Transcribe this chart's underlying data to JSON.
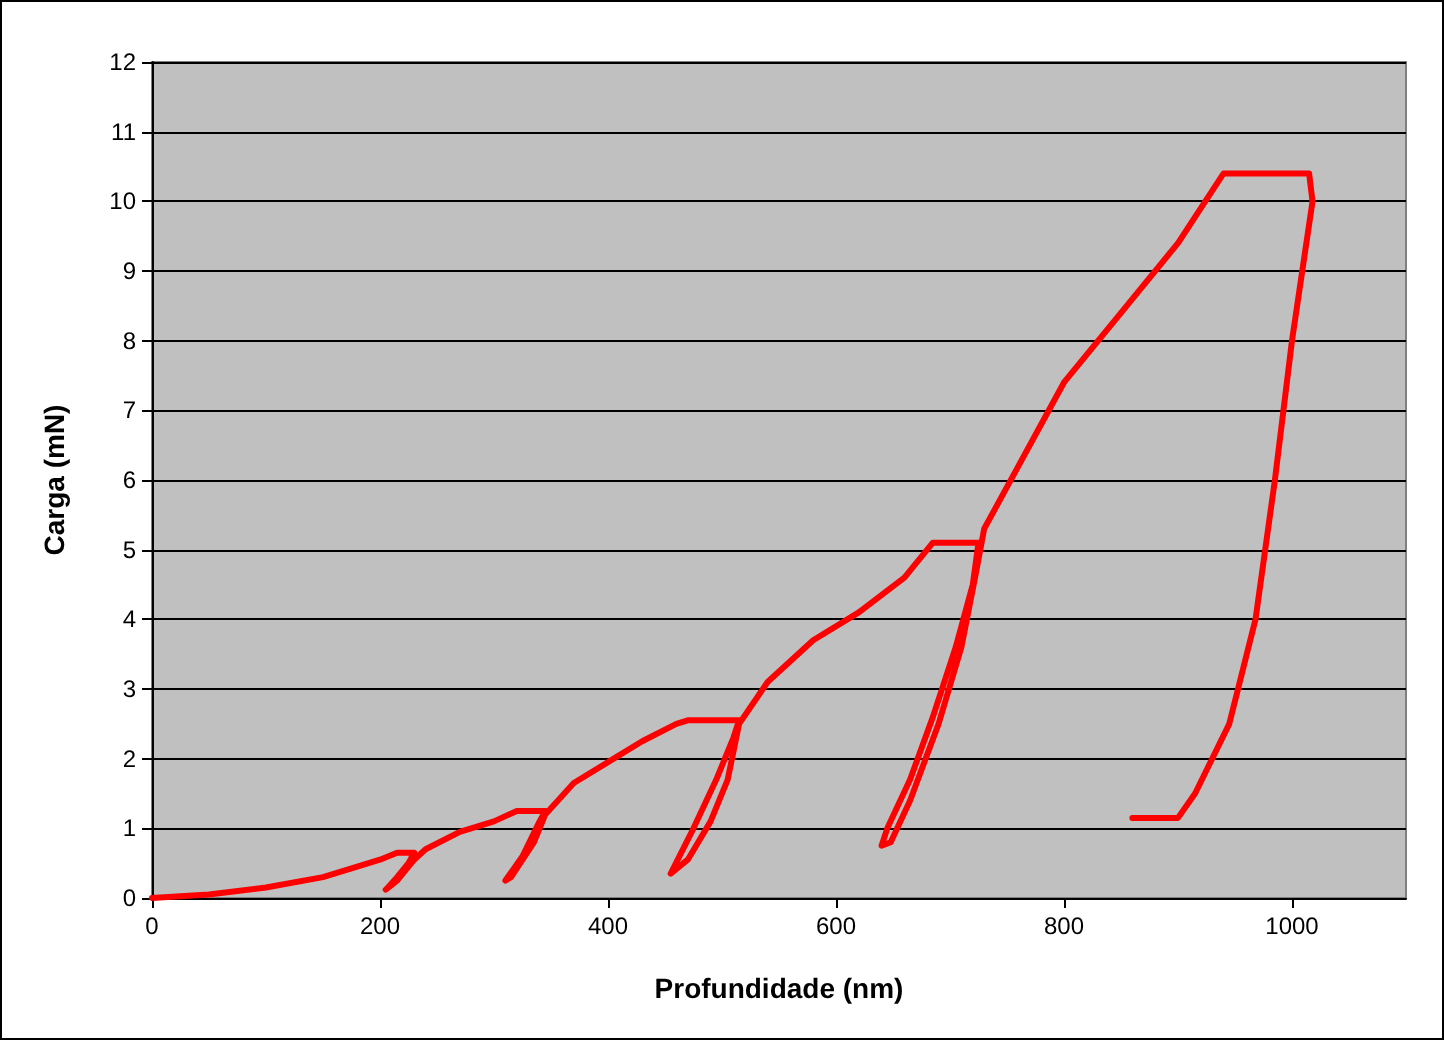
{
  "chart_data": {
    "type": "line",
    "xlabel": "Profundidade (nm)",
    "ylabel": "Carga (mN)",
    "series": [
      {
        "color": "#ff0000",
        "x": [
          0,
          50,
          100,
          150,
          180,
          200,
          215,
          230,
          225,
          215,
          207,
          205,
          215,
          230,
          240,
          270,
          300,
          320,
          345,
          340,
          325,
          310,
          315,
          335,
          345,
          370,
          400,
          430,
          460,
          470,
          515,
          510,
          495,
          475,
          455,
          470,
          490,
          505,
          515,
          540,
          580,
          620,
          660,
          685,
          725,
          720,
          705,
          685,
          665,
          645,
          640,
          648,
          665,
          690,
          710,
          722,
          730,
          760,
          800,
          850,
          900,
          940,
          1015,
          1018,
          1000,
          985,
          968,
          945,
          915,
          900,
          860
        ],
        "values": [
          0,
          0.05,
          0.15,
          0.3,
          0.45,
          0.55,
          0.65,
          0.65,
          0.5,
          0.3,
          0.15,
          0.12,
          0.25,
          0.55,
          0.7,
          0.95,
          1.1,
          1.25,
          1.25,
          1.1,
          0.6,
          0.25,
          0.3,
          0.8,
          1.2,
          1.65,
          1.95,
          2.25,
          2.5,
          2.55,
          2.55,
          2.3,
          1.7,
          1.0,
          0.35,
          0.55,
          1.1,
          1.7,
          2.5,
          3.1,
          3.7,
          4.1,
          4.6,
          5.1,
          5.1,
          4.5,
          3.6,
          2.6,
          1.7,
          1.0,
          0.75,
          0.8,
          1.4,
          2.5,
          3.6,
          4.6,
          5.3,
          6.2,
          7.4,
          8.4,
          9.4,
          10.4,
          10.4,
          10.0,
          8.0,
          6.0,
          4.0,
          2.5,
          1.5,
          1.15,
          1.15
        ]
      }
    ],
    "xlim": [
      0,
      1100
    ],
    "xticks": [
      0,
      200,
      400,
      600,
      800,
      1000
    ],
    "ylim": [
      0,
      12
    ],
    "yticks": [
      0,
      1,
      2,
      3,
      4,
      5,
      6,
      7,
      8,
      9,
      10,
      11,
      12
    ],
    "grid": "y",
    "marker": "none",
    "line_style": "solid"
  }
}
